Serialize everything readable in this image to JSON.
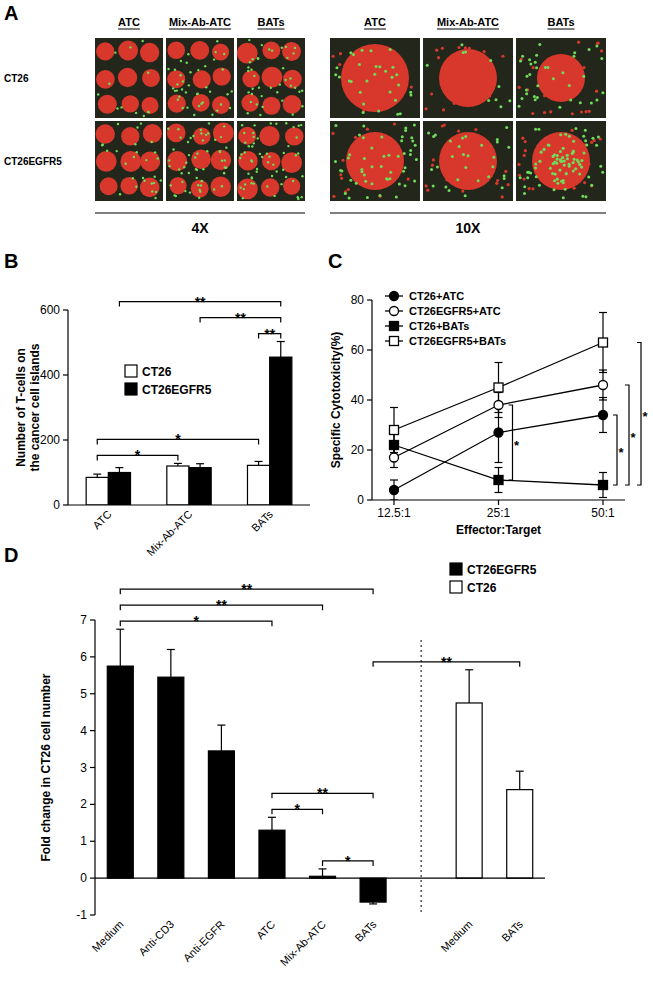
{
  "image_panel": {
    "title": "A",
    "columns": [
      "ATC",
      "Mix-Ab-ATC",
      "BATs"
    ],
    "rows": [
      "CT26",
      "CT26EGFR5"
    ],
    "magnifications": [
      "4X",
      "10X"
    ]
  },
  "chart_data": [
    {
      "type": "bar",
      "title": "B",
      "y_label": "Number of T-cells on the cancer cell islands",
      "categories": [
        "ATC",
        "Mix-Ab-ATC",
        "BATs"
      ],
      "series": [
        {
          "name": "CT26",
          "color": "#ffffff",
          "values": [
            85,
            120,
            122
          ],
          "errors": [
            10,
            8,
            12
          ]
        },
        {
          "name": "CT26EGFR5",
          "color": "#000000",
          "values": [
            100,
            115,
            455
          ],
          "errors": [
            15,
            12,
            48
          ]
        }
      ],
      "ylim": [
        0,
        600
      ],
      "yticks": [
        0,
        200,
        400,
        600
      ],
      "legend": "upper-left",
      "annotations": [
        {
          "text": "**",
          "between": [
            [
              "BATs",
              "CT26"
            ],
            [
              "BATs",
              "CT26EGFR5"
            ]
          ]
        },
        {
          "text": "*",
          "between": [
            [
              "ATC",
              "CT26"
            ],
            [
              "Mix-Ab-ATC",
              "CT26"
            ]
          ]
        },
        {
          "text": "*",
          "between": [
            [
              "ATC",
              "CT26"
            ],
            [
              "BATs",
              "CT26"
            ]
          ]
        },
        {
          "text": "**",
          "between": [
            [
              "Mix-Ab-ATC",
              "CT26EGFR5"
            ],
            [
              "BATs",
              "CT26EGFR5"
            ]
          ]
        },
        {
          "text": "**",
          "between": [
            [
              "ATC",
              "CT26EGFR5"
            ],
            [
              "BATs",
              "CT26EGFR5"
            ]
          ]
        }
      ]
    },
    {
      "type": "line",
      "title": "C",
      "y_label": "Specific Cytotoxicity(%)",
      "x_label": "Effector:Target",
      "categories": [
        "12.5:1",
        "25:1",
        "50:1"
      ],
      "series": [
        {
          "name": "CT26+ATC",
          "color": "#000000",
          "marker": "circle",
          "values": [
            4,
            27,
            34
          ],
          "errors": [
            4,
            12,
            7
          ]
        },
        {
          "name": "CT26EGFR5+ATC",
          "color": "#000000",
          "marker": "open-circle",
          "values": [
            17,
            38,
            46
          ],
          "errors": [
            4,
            5,
            6
          ]
        },
        {
          "name": "CT26+BATs",
          "color": "#000000",
          "marker": "square",
          "values": [
            22,
            8,
            6
          ],
          "errors": [
            6,
            5,
            5
          ]
        },
        {
          "name": "CT26EGFR5+BATs",
          "color": "#000000",
          "marker": "open-square",
          "values": [
            28,
            45,
            63
          ],
          "errors": [
            9,
            10,
            12
          ]
        }
      ],
      "ylim": [
        0,
        80
      ],
      "yticks": [
        0,
        20,
        40,
        60,
        80
      ],
      "legend": "upper-left",
      "annotations": [
        {
          "text": "*",
          "x": "25:1",
          "between": [
            "CT26+BATs",
            "CT26EGFR5+ATC"
          ]
        },
        {
          "text": "*",
          "x": "50:1",
          "between": [
            "CT26+BATs",
            "CT26+ATC"
          ]
        },
        {
          "text": "*",
          "x": "50:1",
          "between": [
            "CT26+BATs",
            "CT26EGFR5+ATC"
          ]
        },
        {
          "text": "*",
          "x": "50:1",
          "between": [
            "CT26+BATs",
            "CT26EGFR5+BATs"
          ]
        }
      ]
    },
    {
      "type": "bar",
      "title": "D",
      "y_label": "Fold change in CT26 cell number",
      "categories": [
        "Medium",
        "Anti-CD3",
        "Anti-EGFR",
        "ATC",
        "Mix-Ab-ATC",
        "BATs",
        "Medium",
        "BATs"
      ],
      "series": [
        {
          "name": "CT26EGFR5",
          "color": "#000000",
          "values": [
            5.75,
            5.45,
            3.45,
            1.3,
            0.05,
            -0.65,
            null,
            null
          ],
          "errors": [
            1.0,
            0.75,
            0.7,
            0.35,
            0.2,
            0.05,
            null,
            null
          ]
        },
        {
          "name": "CT26",
          "color": "#ffffff",
          "values": [
            null,
            null,
            null,
            null,
            null,
            null,
            4.75,
            2.4
          ],
          "errors": [
            null,
            null,
            null,
            null,
            null,
            null,
            0.9,
            0.5
          ]
        }
      ],
      "ylim": [
        -1,
        7
      ],
      "yticks": [
        -1,
        0,
        1,
        2,
        3,
        4,
        5,
        6,
        7
      ],
      "legend": "upper-right",
      "annotations": [
        {
          "text": "*",
          "between": [
            [
              "Medium",
              "CT26EGFR5"
            ],
            [
              "ATC",
              "CT26EGFR5"
            ]
          ]
        },
        {
          "text": "**",
          "between": [
            [
              "Medium",
              "CT26EGFR5"
            ],
            [
              "Mix-Ab-ATC",
              "CT26EGFR5"
            ]
          ]
        },
        {
          "text": "**",
          "between": [
            [
              "Medium",
              "CT26EGFR5"
            ],
            [
              "BATs",
              "CT26EGFR5"
            ]
          ]
        },
        {
          "text": "*",
          "between": [
            [
              "ATC",
              "CT26EGFR5"
            ],
            [
              "Mix-Ab-ATC",
              "CT26EGFR5"
            ]
          ]
        },
        {
          "text": "*",
          "between": [
            [
              "Mix-Ab-ATC",
              "CT26EGFR5"
            ],
            [
              "BATs",
              "CT26EGFR5"
            ]
          ]
        },
        {
          "text": "**",
          "between": [
            [
              "ATC",
              "CT26EGFR5"
            ],
            [
              "BATs",
              "CT26EGFR5"
            ]
          ]
        },
        {
          "text": "**",
          "between": [
            [
              "BATs",
              "CT26EGFR5"
            ],
            [
              "BATs",
              "CT26"
            ]
          ]
        }
      ]
    }
  ]
}
